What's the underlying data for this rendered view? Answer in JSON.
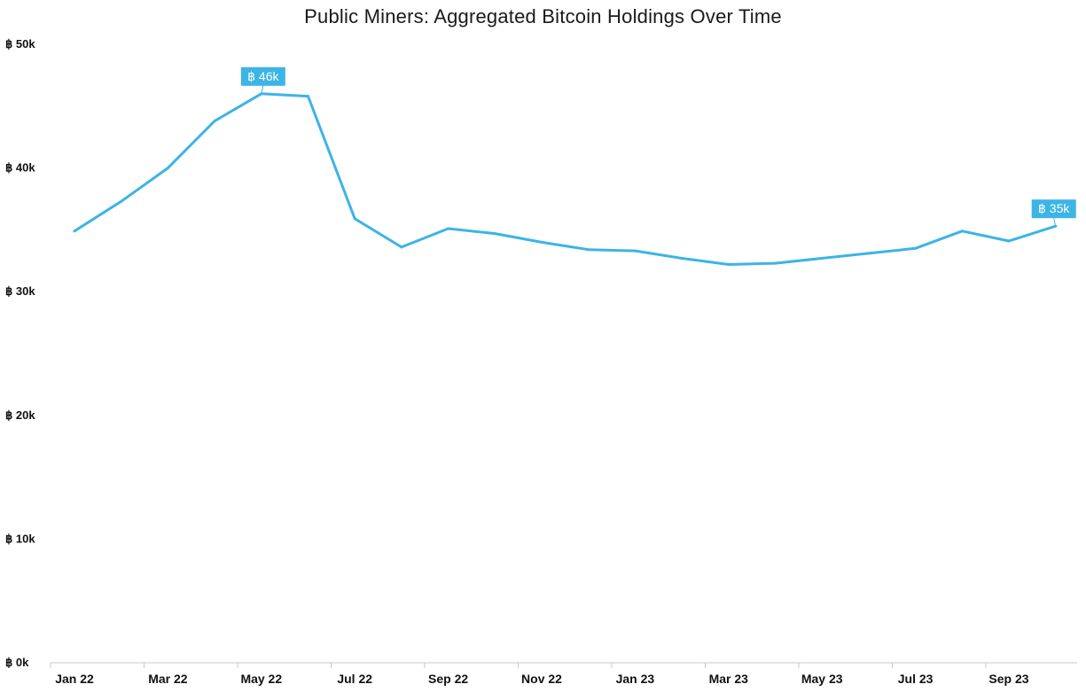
{
  "title": "Public Miners: Aggregated Bitcoin Holdings Over Time",
  "colors": {
    "line": "#3cb4e6",
    "axis": "#c8c8c8",
    "label_bg": "#3cb4e6"
  },
  "chart_data": {
    "type": "line",
    "title": "Public Miners: Aggregated Bitcoin Holdings Over Time",
    "xlabel": "",
    "ylabel": "",
    "x": [
      "Jan 22",
      "Feb 22",
      "Mar 22",
      "Apr 22",
      "May 22",
      "Jun 22",
      "Jul 22",
      "Aug 22",
      "Sep 22",
      "Oct 22",
      "Nov 22",
      "Dec 22",
      "Jan 23",
      "Feb 23",
      "Mar 23",
      "Apr 23",
      "May 23",
      "Jun 23",
      "Jul 23",
      "Aug 23",
      "Sep 23",
      "Oct 23"
    ],
    "x_tick_labels": [
      "Jan 22",
      "Mar 22",
      "May 22",
      "Jul 22",
      "Sep 22",
      "Nov 22",
      "Jan 23",
      "Mar 23",
      "May 23",
      "Jul 23",
      "Sep 23"
    ],
    "series": [
      {
        "values": [
          34900,
          37300,
          40000,
          43800,
          46000,
          45800,
          35900,
          33600,
          35100,
          34700,
          34000,
          33400,
          33300,
          32700,
          32200,
          32300,
          32700,
          33100,
          33500,
          34900,
          34100,
          35300
        ]
      }
    ],
    "ylim": [
      0,
      50000
    ],
    "y_tick_values": [
      0,
      10000,
      20000,
      30000,
      40000,
      50000
    ],
    "y_tick_labels": [
      "฿ 0k",
      "฿ 10k",
      "฿ 20k",
      "฿ 30k",
      "฿ 40k",
      "฿ 50k"
    ],
    "data_labels": [
      {
        "index": 4,
        "text": "฿ 46k"
      },
      {
        "index": 21,
        "text": "฿ 35k"
      }
    ],
    "grid": false,
    "legend": "none"
  }
}
